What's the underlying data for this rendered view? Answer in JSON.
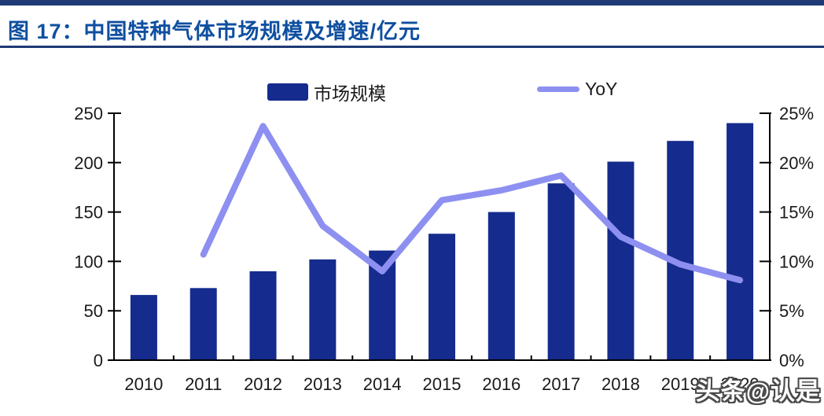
{
  "figure": {
    "title": "图 17：中国特种气体市场规模及增速/亿元",
    "title_color": "#0f4fa0",
    "rule_color": "#1e3a74"
  },
  "legend": {
    "items": [
      {
        "label": "市场规模",
        "marker": "bar-swatch",
        "color": "#152b8d"
      },
      {
        "label": "YoY",
        "marker": "line-swatch",
        "color": "#8d90f0"
      }
    ]
  },
  "watermark": "头条@认是",
  "chart_data": {
    "type": "bar",
    "subtype": "combo-bar-line-dual-axis",
    "title": "中国特种气体市场规模及增速/亿元",
    "categories": [
      "2010",
      "2011",
      "2012",
      "2013",
      "2014",
      "2015",
      "2016",
      "2017",
      "2018",
      "2019",
      "2020"
    ],
    "series": [
      {
        "name": "市场规模",
        "type": "bar",
        "axis": "left",
        "color": "#152b8d",
        "values": [
          66,
          73,
          90,
          102,
          111,
          128,
          150,
          179,
          201,
          222,
          240
        ]
      },
      {
        "name": "YoY",
        "type": "line",
        "axis": "right",
        "color": "#8d90f0",
        "unit": "%",
        "values": [
          null,
          10.7,
          23.7,
          13.6,
          9.0,
          16.2,
          17.2,
          18.7,
          12.5,
          9.7,
          8.1
        ]
      }
    ],
    "left_axis": {
      "min": 0,
      "max": 250,
      "tick_step": 50,
      "tick_labels": [
        "0",
        "50",
        "100",
        "150",
        "200",
        "250"
      ]
    },
    "right_axis": {
      "min": 0,
      "max": 25,
      "tick_step": 5,
      "unit": "%",
      "tick_labels": [
        "0%",
        "5%",
        "10%",
        "15%",
        "20%",
        "25%"
      ]
    },
    "grid": false,
    "legend_position": "top",
    "axis_color": "#000000",
    "label_color": "#1a1a1a"
  }
}
